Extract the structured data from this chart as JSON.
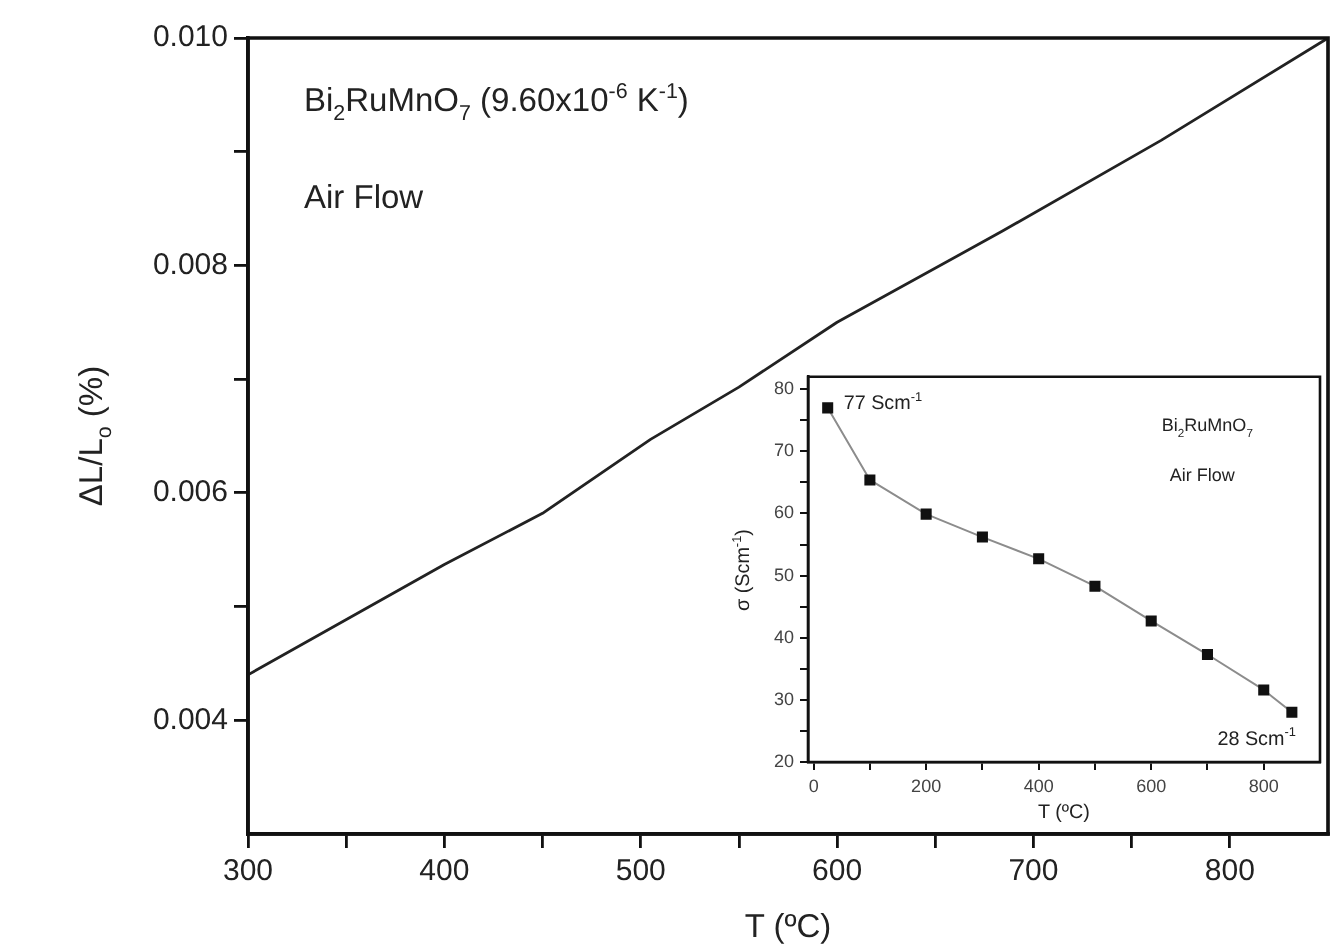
{
  "chart_data": [
    {
      "type": "line",
      "xlabel": "T (ºC)",
      "ylabel": "ΔL/L$_{o}$ (%)",
      "x": [
        300,
        400,
        450,
        505,
        550,
        600,
        684,
        765,
        850
      ],
      "series": [
        {
          "color": "#222222",
          "values": [
            0.0044,
            0.00537,
            0.00582,
            0.00647,
            0.00693,
            0.0075,
            0.0083,
            0.0091,
            0.01
          ]
        }
      ],
      "xlim": [
        300,
        850
      ],
      "ylim": [
        0.003,
        0.01
      ],
      "xticks": [
        300,
        {
          "value": 350,
          "label": null
        },
        400,
        {
          "value": 450,
          "label": null
        },
        500,
        {
          "value": 550,
          "label": null
        },
        600,
        {
          "value": 650,
          "label": null
        },
        700,
        {
          "value": 750,
          "label": null
        },
        800
      ],
      "yticks": [
        {
          "value": 0.004,
          "label": "0.004"
        },
        {
          "value": 0.005,
          "label": null
        },
        {
          "value": 0.006,
          "label": "0.006"
        },
        {
          "value": 0.007,
          "label": null
        },
        {
          "value": 0.008,
          "label": "0.008"
        },
        {
          "value": 0.009,
          "label": null
        },
        {
          "value": 0.01,
          "label": "0.010"
        }
      ],
      "annotations": [
        "Bi$_{2}$RuMnO$_{7}$ (9.60x10$^{-6}$ K$^{-1}$)",
        "Air Flow"
      ]
    },
    {
      "type": "line",
      "xlabel": "T (ºC)",
      "ylabel": "σ (Scm$^{-1}$)",
      "marker": "square",
      "x": [
        25,
        100,
        200,
        300,
        400,
        500,
        600,
        700,
        800,
        850
      ],
      "series": [
        {
          "color": "#111111",
          "values": [
            77,
            65.4,
            59.9,
            56.2,
            52.7,
            48.3,
            42.7,
            37.3,
            31.6,
            28
          ]
        }
      ],
      "xlim": [
        -10,
        900
      ],
      "ylim": [
        20,
        82
      ],
      "xticks": [
        0,
        {
          "value": 100,
          "label": null
        },
        200,
        {
          "value": 300,
          "label": null
        },
        400,
        {
          "value": 500,
          "label": null
        },
        600,
        {
          "value": 700,
          "label": null
        },
        800
      ],
      "yticks": [
        20,
        {
          "value": 25,
          "label": null
        },
        30,
        {
          "value": 35,
          "label": null
        },
        40,
        {
          "value": 45,
          "label": null
        },
        50,
        {
          "value": 55,
          "label": null
        },
        60,
        {
          "value": 65,
          "label": null
        },
        70,
        {
          "value": 75,
          "label": null
        },
        80
      ],
      "annotations": [
        {
          "text": "77 Scm$^{-1}$",
          "x": 25,
          "y": 77
        },
        {
          "text": "28 Scm$^{-1}$",
          "x": 850,
          "y": 28
        },
        "Bi$_{2}$RuMnO$_{7}$",
        "Air Flow"
      ]
    }
  ]
}
